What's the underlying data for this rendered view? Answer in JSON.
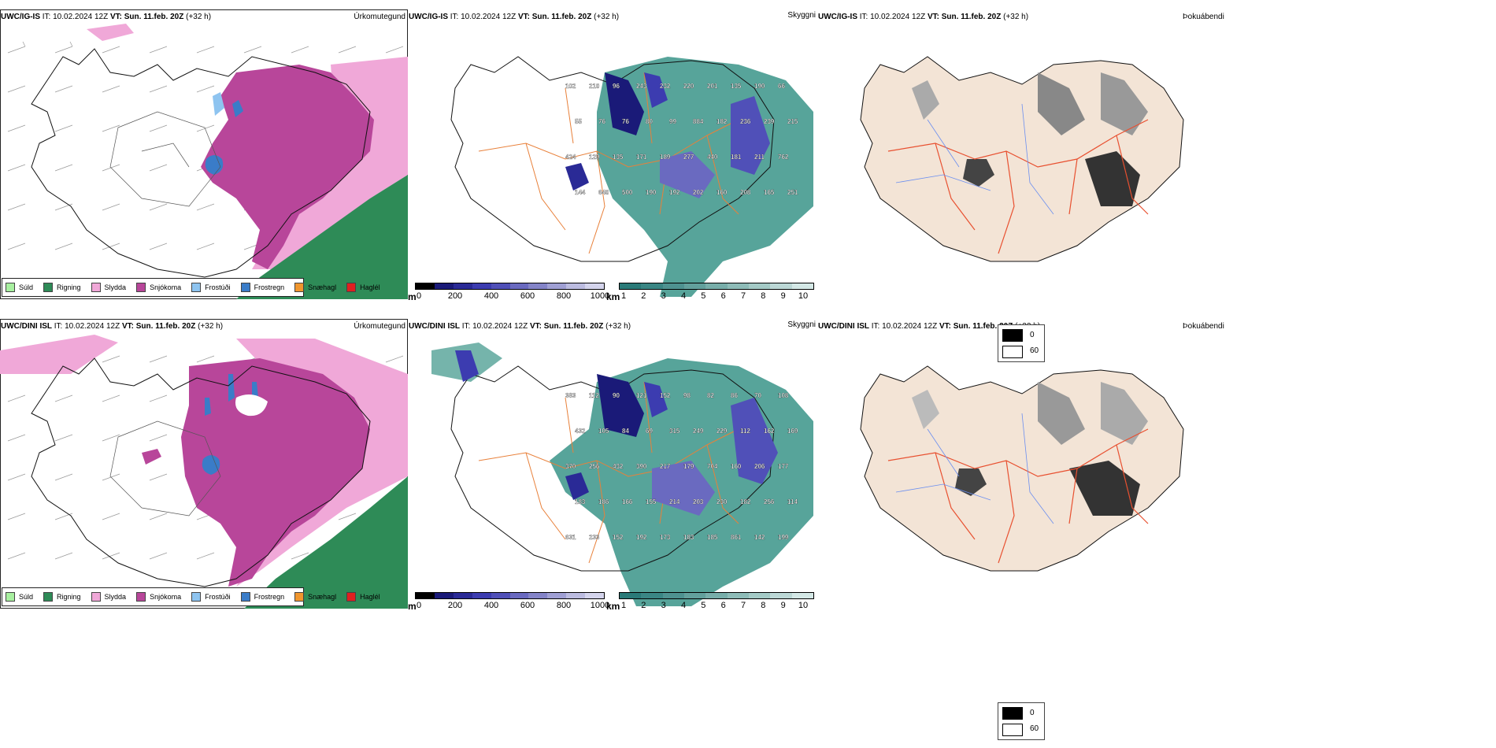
{
  "rows": [
    {
      "model": "UWC/IG-IS",
      "it_label": "IT:",
      "it_value": "10.02.2024 12Z",
      "vt_label": "VT: Sun. 11.feb. 20Z",
      "lead": "(+32 h)",
      "visibility_labels": [
        "102",
        "210",
        "96",
        "243",
        "232",
        "220",
        "201",
        "135",
        "190",
        "66",
        "55",
        "76",
        "76",
        "80",
        "99",
        "884",
        "182",
        "236",
        "239",
        "215",
        "424",
        "129",
        "135",
        "171",
        "189",
        "277",
        "440",
        "181",
        "211",
        "762",
        "144",
        "640",
        "500",
        "190",
        "192",
        "202",
        "160",
        "208",
        "165",
        "251"
      ]
    },
    {
      "model": "UWC/DINI ISL",
      "it_label": "IT:",
      "it_value": "10.02.2024 12Z",
      "vt_label": "VT: Sun. 11.feb. 20Z",
      "lead": "(+32 h)",
      "visibility_labels": [
        "383",
        "112",
        "90",
        "121",
        "152",
        "98",
        "82",
        "86",
        "70",
        "108",
        "432",
        "105",
        "84",
        "69",
        "315",
        "249",
        "229",
        "112",
        "162",
        "169",
        "370",
        "256",
        "432",
        "390",
        "217",
        "179",
        "704",
        "160",
        "206",
        "177",
        "183",
        "186",
        "166",
        "155",
        "214",
        "203",
        "230",
        "182",
        "256",
        "114",
        "631",
        "233",
        "152",
        "192",
        "173",
        "183",
        "185",
        "861",
        "142",
        "199"
      ]
    }
  ],
  "panel_titles": {
    "precip": "Úrkomutegund",
    "visibility": "Skyggni",
    "cloud": "Þokuábendi"
  },
  "precip_legend": [
    {
      "label": "Súld",
      "color": "#a8f0a0"
    },
    {
      "label": "Rigning",
      "color": "#2e8b57"
    },
    {
      "label": "Slydda",
      "color": "#f0a8d8"
    },
    {
      "label": "Snjókoma",
      "color": "#b8469a"
    },
    {
      "label": "Frostúði",
      "color": "#8ec4f0"
    },
    {
      "label": "Frostregn",
      "color": "#3a7cc8"
    },
    {
      "label": "Snæhagl",
      "color": "#f0962e"
    },
    {
      "label": "Haglél",
      "color": "#e02020"
    }
  ],
  "visibility_scale": {
    "m_unit": "m",
    "m_ticks": [
      "0",
      "200",
      "400",
      "600",
      "800",
      "1000"
    ],
    "m_colors": [
      "#000000",
      "#1a1a78",
      "#2a2a96",
      "#3c3cb0",
      "#5050b8",
      "#6a6ac0",
      "#8484c8",
      "#a0a0d4",
      "#bcbce0",
      "#d4d4ec"
    ],
    "km_unit": "km",
    "km_ticks": [
      "1",
      "2",
      "3",
      "4",
      "5",
      "6",
      "7",
      "8",
      "9",
      "10"
    ],
    "km_colors": [
      "#2a7a78",
      "#3a8684",
      "#4e9290",
      "#62a09c",
      "#78aeaa",
      "#8ebcb8",
      "#a4cac6",
      "#bcd8d6",
      "#d4e8e6"
    ]
  },
  "cloud_scale": {
    "values": [
      "0",
      "60"
    ],
    "colors": [
      "#000000",
      "#ffffff"
    ]
  },
  "colors": {
    "snow": "#b8469a",
    "sleet": "#f0a8d8",
    "rain": "#2e8b57",
    "frost": "#3a7cc8",
    "vis_fog": "#3a9488",
    "land_cloud": "#f3e4d6",
    "roads": "#e8803a",
    "rivers": "#6a8ef0"
  }
}
